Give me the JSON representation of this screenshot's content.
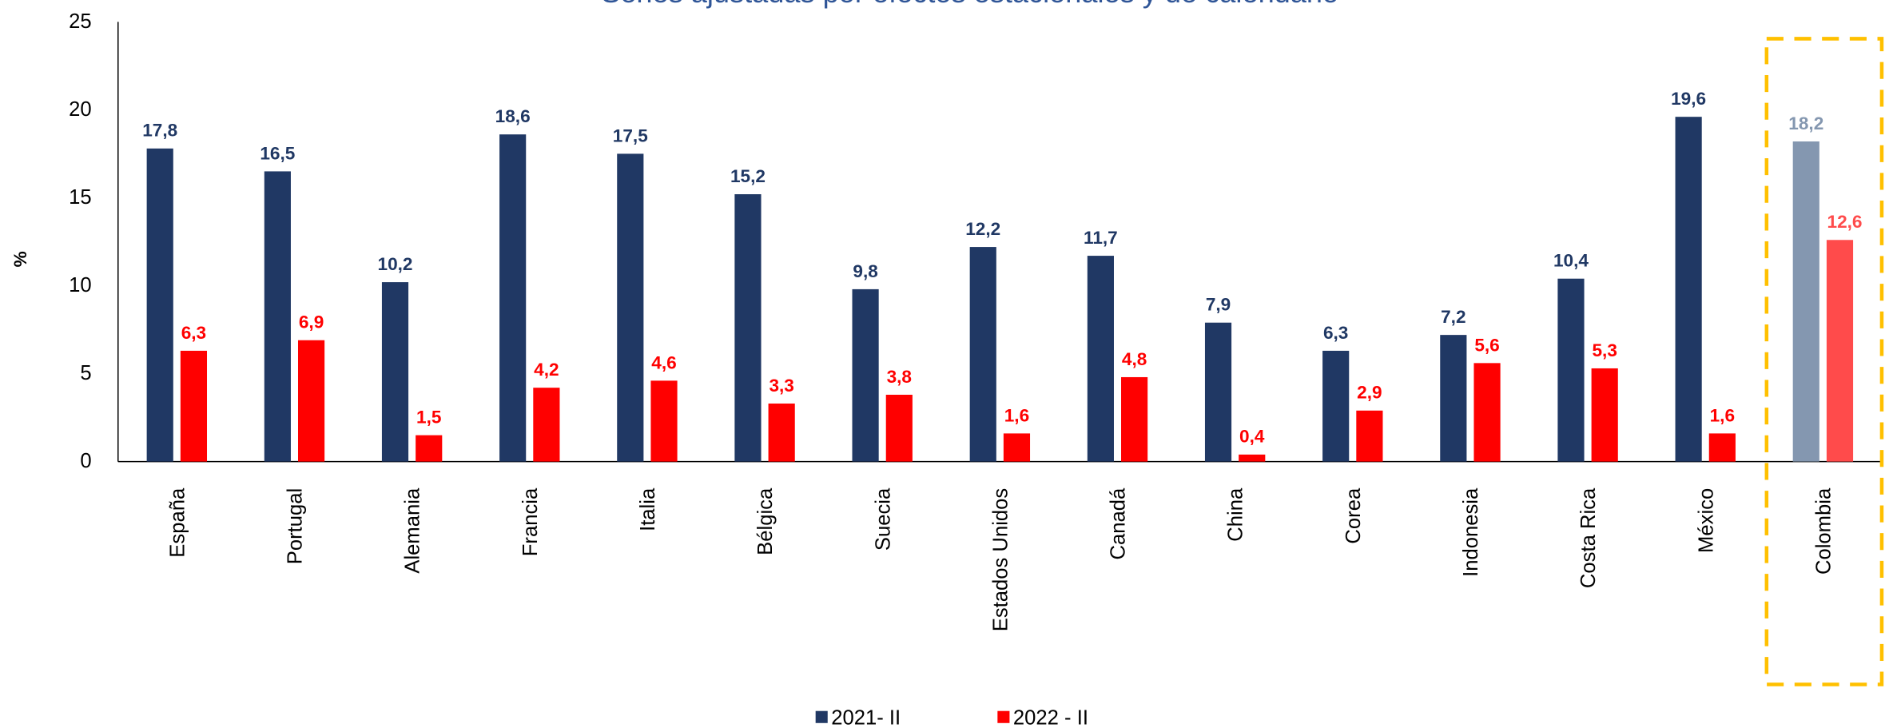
{
  "chart_data": {
    "type": "bar",
    "title": "Series ajustadas por efectos estacionales y de calendario",
    "y_label": "%",
    "categories": [
      "España",
      "Portugal",
      "Alemania",
      "Francia",
      "Italia",
      "Bélgica",
      "Suecia",
      "Estados Unidos",
      "Canadá",
      "China",
      "Corea",
      "Indonesia",
      "Costa Rica",
      "México",
      "Colombia"
    ],
    "series": [
      {
        "name": "2021- II",
        "color": "#203864",
        "highlight_color": "#8497b0",
        "values": [
          17.8,
          16.5,
          10.2,
          18.6,
          17.5,
          15.2,
          9.8,
          12.2,
          11.7,
          7.9,
          6.3,
          7.2,
          10.4,
          19.6,
          18.2
        ],
        "value_labels": [
          "17,8",
          "16,5",
          "10,2",
          "18,6",
          "17,5",
          "15,2",
          "9,8",
          "12,2",
          "11,7",
          "7,9",
          "6,3",
          "7,2",
          "10,4",
          "19,6",
          "18,2"
        ]
      },
      {
        "name": "2022 - II",
        "color": "#ff0000",
        "highlight_color": "#ff4b4b",
        "values": [
          6.3,
          6.9,
          1.5,
          4.2,
          4.6,
          3.3,
          3.8,
          1.6,
          4.8,
          0.4,
          2.9,
          5.6,
          5.3,
          1.6,
          12.6
        ],
        "value_labels": [
          "6,3",
          "6,9",
          "1,5",
          "4,2",
          "4,6",
          "3,3",
          "3,8",
          "1,6",
          "4,8",
          "0,4",
          "2,9",
          "5,6",
          "5,3",
          "1,6",
          "12,6"
        ]
      }
    ],
    "highlight": "Colombia",
    "highlight_box_color": "#ffc000",
    "ylim": [
      0,
      25
    ],
    "yticks": [
      0,
      5,
      10,
      15,
      20,
      25
    ],
    "grid": false,
    "legend": "bottom"
  }
}
